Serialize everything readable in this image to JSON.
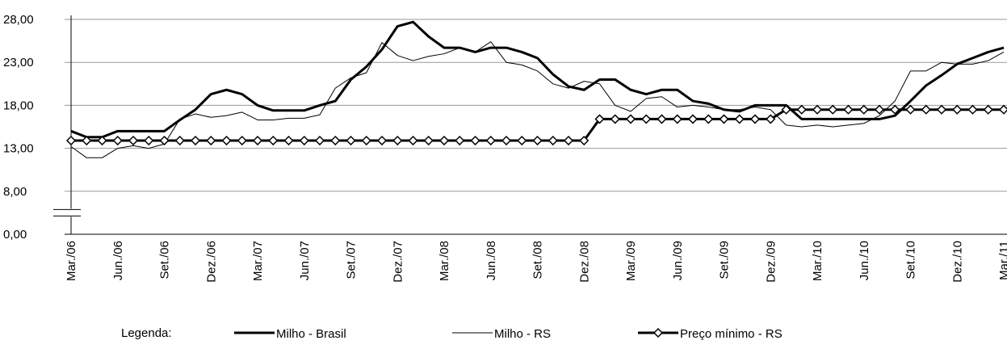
{
  "chart_data": {
    "type": "line",
    "categories": [
      "Mar./06",
      null,
      null,
      "Jun./06",
      null,
      null,
      "Set./06",
      null,
      null,
      "Dez./06",
      null,
      null,
      "Mar./07",
      null,
      null,
      "Jun./07",
      null,
      null,
      "Set./07",
      null,
      null,
      "Dez./07",
      null,
      null,
      "Mar./08",
      null,
      null,
      "Jun./08",
      null,
      null,
      "Set./08",
      null,
      null,
      "Dez./08",
      null,
      null,
      "Mar./09",
      null,
      null,
      "Jun./09",
      null,
      null,
      "Set./09",
      null,
      null,
      "Dez./09",
      null,
      null,
      "Mar./10",
      null,
      null,
      "Jun./10",
      null,
      null,
      "Set./10",
      null,
      null,
      "Dez./10",
      null,
      null,
      "Mar./11"
    ],
    "series": [
      {
        "name": "Milho - Brasil",
        "color": "#000000",
        "width": 3,
        "marker": false,
        "values": [
          15,
          14.3,
          14.3,
          15,
          15,
          15,
          15,
          16.3,
          17.5,
          19.3,
          19.8,
          19.3,
          18,
          17.4,
          17.4,
          17.4,
          18,
          18.5,
          21,
          22.5,
          24.5,
          27.2,
          27.7,
          26,
          24.7,
          24.7,
          24.2,
          24.7,
          24.7,
          24.2,
          23.5,
          21.6,
          20.2,
          19.8,
          21,
          21,
          19.8,
          19.3,
          19.8,
          19.8,
          18.5,
          18.2,
          17.5,
          17.3,
          18,
          18,
          18,
          16.4,
          16.4,
          16.4,
          16.4,
          16.4,
          16.4,
          16.8,
          18.5,
          20.3,
          21.5,
          22.8,
          23.5,
          24.2,
          24.7
        ]
      },
      {
        "name": "Milho - RS",
        "color": "#000000",
        "width": 1,
        "marker": false,
        "values": [
          13.2,
          11.9,
          11.9,
          13,
          13.3,
          13,
          13.5,
          16.4,
          17,
          16.6,
          16.8,
          17.2,
          16.3,
          16.3,
          16.5,
          16.5,
          16.9,
          20,
          21.2,
          21.8,
          25.3,
          23.8,
          23.2,
          23.7,
          24,
          24.7,
          24.2,
          25.4,
          23,
          22.7,
          22,
          20.5,
          20,
          20.8,
          20.5,
          18,
          17.3,
          18.8,
          19,
          17.8,
          18,
          17.8,
          17.5,
          17.5,
          17.8,
          17.5,
          15.7,
          15.5,
          15.7,
          15.5,
          15.7,
          15.9,
          16.8,
          18.5,
          22,
          22,
          23,
          22.8,
          22.8,
          23.2,
          24.2
        ]
      },
      {
        "name": "Preço mínimo - RS",
        "color": "#000000",
        "width": 3,
        "marker": true,
        "values": [
          13.9,
          13.9,
          13.9,
          13.9,
          13.9,
          13.9,
          13.9,
          13.9,
          13.9,
          13.9,
          13.9,
          13.9,
          13.9,
          13.9,
          13.9,
          13.9,
          13.9,
          13.9,
          13.9,
          13.9,
          13.9,
          13.9,
          13.9,
          13.9,
          13.9,
          13.9,
          13.9,
          13.9,
          13.9,
          13.9,
          13.9,
          13.9,
          13.9,
          13.9,
          16.4,
          16.4,
          16.4,
          16.4,
          16.4,
          16.4,
          16.4,
          16.4,
          16.4,
          16.4,
          16.4,
          16.4,
          17.5,
          17.5,
          17.5,
          17.5,
          17.5,
          17.5,
          17.5,
          17.5,
          17.5,
          17.5,
          17.5,
          17.5,
          17.5,
          17.5,
          17.5
        ]
      }
    ],
    "ylim": [
      0,
      28
    ],
    "yticks": [
      {
        "value": 0,
        "label": "0,00"
      },
      {
        "value": 8,
        "label": "8,00"
      },
      {
        "value": 13,
        "label": "13,00"
      },
      {
        "value": 18,
        "label": "18,00"
      },
      {
        "value": 23,
        "label": "23,00"
      },
      {
        "value": 28,
        "label": "28,00"
      }
    ],
    "grid": true,
    "legend_title": "Legenda:",
    "legend_position": "bottom"
  }
}
